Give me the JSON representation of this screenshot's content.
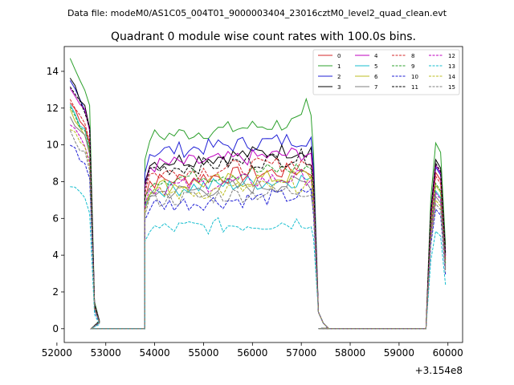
{
  "suptitle": "Data file: modeM0/AS1C05_004T01_9000003404_23016cztM0_level2_quad_clean.evt",
  "chart_data": {
    "type": "line",
    "title": "Quadrant 0 module wise count rates with 100.0s bins.",
    "xlabel": "",
    "ylabel": "",
    "x_offset_label": "+3.154e8",
    "xlim": [
      52150,
      60300
    ],
    "ylim": [
      -0.75,
      15.35
    ],
    "x_ticks": [
      52000,
      53000,
      54000,
      55000,
      56000,
      57000,
      58000,
      59000,
      60000
    ],
    "x_tick_labels": [
      "52000",
      "53000",
      "54000",
      "55000",
      "56000",
      "57000",
      "58000",
      "59000",
      "60000"
    ],
    "y_ticks": [
      0,
      2,
      4,
      6,
      8,
      10,
      12,
      14
    ],
    "y_tick_labels": [
      "0",
      "2",
      "4",
      "6",
      "8",
      "10",
      "12",
      "14"
    ],
    "grid": false,
    "legend_position": "top-right",
    "legend_columns": 4,
    "segments": [
      {
        "x_start": 52270,
        "n_points": 7,
        "shape": "decay"
      },
      {
        "x_start": 52700,
        "n_points": 12,
        "shape": "zero"
      },
      {
        "x_start": 53800,
        "n_points": 35,
        "shape": "plateau"
      },
      {
        "x_start": 57250,
        "n_points": 4,
        "shape": "drop"
      },
      {
        "x_start": 57350,
        "n_points": 23,
        "shape": "zero"
      },
      {
        "x_start": 59650,
        "n_points": 4,
        "shape": "spike"
      }
    ],
    "series": [
      {
        "name": "0",
        "color": "#d62728",
        "dash": "solid",
        "start": 12.3,
        "level": 8.6,
        "spike": 8.5
      },
      {
        "name": "1",
        "color": "#2ca02c",
        "dash": "solid",
        "start": 14.6,
        "level": 11.2,
        "spike": 10.1
      },
      {
        "name": "2",
        "color": "#1f1fd6",
        "dash": "solid",
        "start": 13.4,
        "level": 10.3,
        "spike": 8.8
      },
      {
        "name": "3",
        "color": "#000000",
        "dash": "solid",
        "start": 13.5,
        "level": 9.7,
        "spike": 9.2
      },
      {
        "name": "4",
        "color": "#bf00bf",
        "dash": "solid",
        "start": 13.1,
        "level": 9.5,
        "spike": 8.9
      },
      {
        "name": "5",
        "color": "#17becf",
        "dash": "solid",
        "start": 12.0,
        "level": 8.1,
        "spike": 7.5
      },
      {
        "name": "6",
        "color": "#bcbd22",
        "dash": "solid",
        "start": 11.8,
        "level": 8.3,
        "spike": 7.8
      },
      {
        "name": "7",
        "color": "#7f7f7f",
        "dash": "solid",
        "start": 11.5,
        "level": 7.9,
        "spike": 7.2
      },
      {
        "name": "8",
        "color": "#d62728",
        "dash": "dashed",
        "start": 12.5,
        "level": 9.0,
        "spike": 8.3
      },
      {
        "name": "9",
        "color": "#2ca02c",
        "dash": "dashed",
        "start": 11.9,
        "level": 8.7,
        "spike": 7.9
      },
      {
        "name": "10",
        "color": "#1f1fd6",
        "dash": "dashed",
        "start": 10.0,
        "level": 7.2,
        "spike": 6.5
      },
      {
        "name": "11",
        "color": "#000000",
        "dash": "dashed",
        "start": 13.2,
        "level": 9.3,
        "spike": 9.0
      },
      {
        "name": "12",
        "color": "#bf00bf",
        "dash": "dashed",
        "start": 11.2,
        "level": 8.2,
        "spike": 7.4
      },
      {
        "name": "13",
        "color": "#17becf",
        "dash": "dashed",
        "start": 7.8,
        "level": 5.8,
        "spike": 5.3
      },
      {
        "name": "14",
        "color": "#bcbd22",
        "dash": "dashed",
        "start": 11.0,
        "level": 7.8,
        "spike": 7.0
      },
      {
        "name": "15",
        "color": "#7f7f7f",
        "dash": "dashed",
        "start": 10.6,
        "level": 7.5,
        "spike": 6.8
      }
    ]
  }
}
